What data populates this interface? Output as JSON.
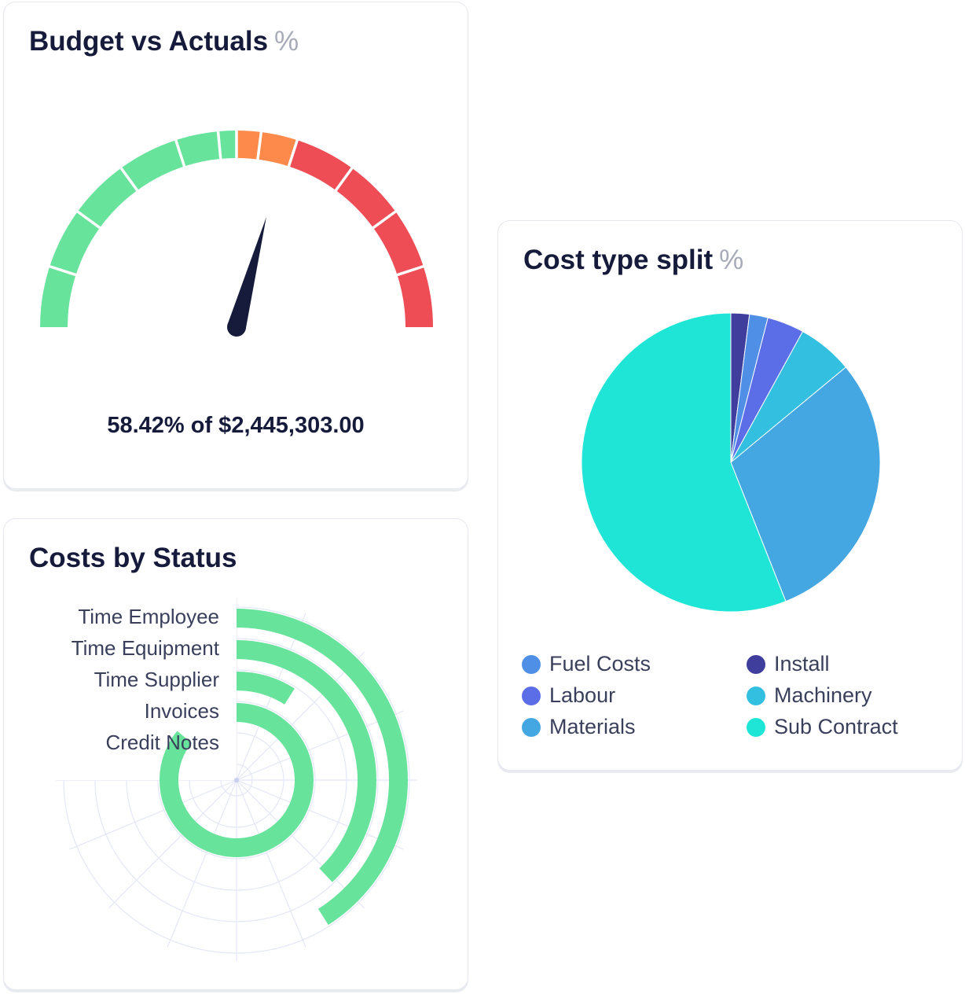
{
  "budget_card": {
    "title": "Budget vs Actuals",
    "unit": "%",
    "caption": "58.42% of $2,445,303.00"
  },
  "status_card": {
    "title": "Costs by Status"
  },
  "cost_card": {
    "title": "Cost type split",
    "unit": "%"
  },
  "colors": {
    "green": "#68e39b",
    "orange": "#fd8a4b",
    "red": "#ee4d56",
    "needle": "#161b3b",
    "grid": "#e4e7f5"
  },
  "chart_data": [
    {
      "type": "gauge",
      "title": "Budget vs Actuals",
      "value": 58.42,
      "range": [
        0,
        100
      ],
      "bands": [
        {
          "from": 0,
          "to": 50,
          "color": "#68e39b"
        },
        {
          "from": 50,
          "to": 60,
          "color": "#fd8a4b"
        },
        {
          "from": 60,
          "to": 100,
          "color": "#ee4d56"
        }
      ]
    },
    {
      "type": "bar",
      "orientation": "radial",
      "title": "Costs by Status",
      "categories": [
        "Time Employee",
        "Time Equipment",
        "Time Supplier",
        "Invoices",
        "Credit Notes"
      ],
      "values": [
        41,
        38,
        9,
        86,
        0
      ],
      "max": 100,
      "color": "#68e39b"
    },
    {
      "type": "pie",
      "title": "Cost type split",
      "labels": [
        "Install",
        "Fuel Costs",
        "Labour",
        "Machinery",
        "Materials",
        "Sub Contract"
      ],
      "values": [
        2,
        2,
        4,
        6,
        30,
        56
      ],
      "colors": [
        "#3f3e9c",
        "#4f8fe6",
        "#5b6ee8",
        "#33bfe0",
        "#45a7e2",
        "#1fe5d7"
      ],
      "legend": [
        {
          "label": "Fuel Costs",
          "color": "#4f8fe6"
        },
        {
          "label": "Install",
          "color": "#3f3e9c"
        },
        {
          "label": "Labour",
          "color": "#5b6ee8"
        },
        {
          "label": "Machinery",
          "color": "#33bfe0"
        },
        {
          "label": "Materials",
          "color": "#45a7e2"
        },
        {
          "label": "Sub Contract",
          "color": "#1fe5d7"
        }
      ]
    }
  ]
}
